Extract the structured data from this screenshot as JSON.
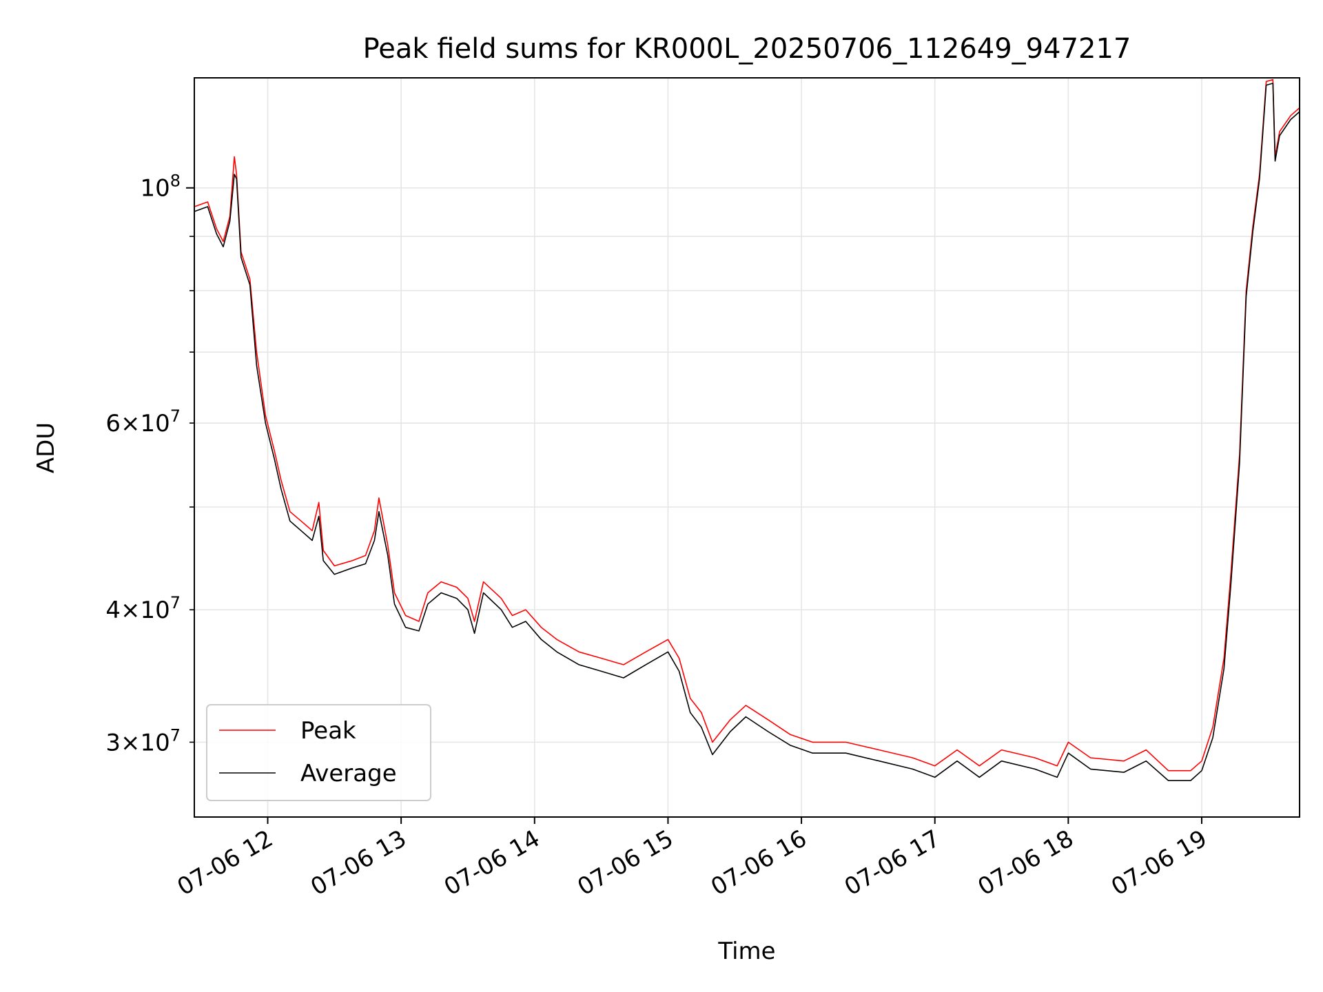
{
  "chart_data": {
    "type": "line",
    "title": "Peak field sums for KR000L_20250706_112649_947217",
    "xlabel": "Time",
    "ylabel": "ADU",
    "yscale": "log",
    "xlim": [
      "2025-07-06 11:27",
      "2025-07-06 19:44"
    ],
    "ylim": [
      25500000,
      127000000
    ],
    "x_ticks": [
      {
        "value": "2025-07-06 12:00",
        "label": "07-06 12"
      },
      {
        "value": "2025-07-06 13:00",
        "label": "07-06 13"
      },
      {
        "value": "2025-07-06 14:00",
        "label": "07-06 14"
      },
      {
        "value": "2025-07-06 15:00",
        "label": "07-06 15"
      },
      {
        "value": "2025-07-06 16:00",
        "label": "07-06 16"
      },
      {
        "value": "2025-07-06 17:00",
        "label": "07-06 17"
      },
      {
        "value": "2025-07-06 18:00",
        "label": "07-06 18"
      },
      {
        "value": "2025-07-06 19:00",
        "label": "07-06 19"
      }
    ],
    "y_ticks_major": [
      {
        "value": 100000000,
        "base": "10",
        "exp": "8",
        "mant": ""
      }
    ],
    "y_ticks_minor": [
      {
        "value": 30000000,
        "mant": "3",
        "base": "10",
        "exp": "7"
      },
      {
        "value": 40000000,
        "mant": "4",
        "base": "10",
        "exp": "7"
      },
      {
        "value": 50000000,
        "mant": "",
        "base": "",
        "exp": ""
      },
      {
        "value": 60000000,
        "mant": "6",
        "base": "10",
        "exp": "7"
      },
      {
        "value": 70000000,
        "mant": "",
        "base": "",
        "exp": ""
      },
      {
        "value": 80000000,
        "mant": "",
        "base": "",
        "exp": ""
      },
      {
        "value": 90000000,
        "mant": "",
        "base": "",
        "exp": ""
      }
    ],
    "grid": true,
    "legend": {
      "placement": "lower-left",
      "entries": [
        "Peak",
        "Average"
      ]
    },
    "series": [
      {
        "name": "Peak",
        "color": "#ff0000",
        "points": [
          [
            "2025-07-06 11:27",
            96000000
          ],
          [
            "2025-07-06 11:33",
            97000000
          ],
          [
            "2025-07-06 11:37",
            91500000
          ],
          [
            "2025-07-06 11:40",
            89000000
          ],
          [
            "2025-07-06 11:43",
            94000000
          ],
          [
            "2025-07-06 11:45",
            107000000
          ],
          [
            "2025-07-06 11:46",
            103000000
          ],
          [
            "2025-07-06 11:48",
            87000000
          ],
          [
            "2025-07-06 11:52",
            82000000
          ],
          [
            "2025-07-06 11:55",
            70000000
          ],
          [
            "2025-07-06 11:59",
            61000000
          ],
          [
            "2025-07-06 12:03",
            56500000
          ],
          [
            "2025-07-06 12:06",
            53000000
          ],
          [
            "2025-07-06 12:10",
            49500000
          ],
          [
            "2025-07-06 12:15",
            48500000
          ],
          [
            "2025-07-06 12:20",
            47500000
          ],
          [
            "2025-07-06 12:23",
            50500000
          ],
          [
            "2025-07-06 12:25",
            45500000
          ],
          [
            "2025-07-06 12:30",
            44000000
          ],
          [
            "2025-07-06 12:38",
            44500000
          ],
          [
            "2025-07-06 12:44",
            45000000
          ],
          [
            "2025-07-06 12:48",
            47500000
          ],
          [
            "2025-07-06 12:50",
            51000000
          ],
          [
            "2025-07-06 12:54",
            46000000
          ],
          [
            "2025-07-06 12:57",
            41500000
          ],
          [
            "2025-07-06 13:02",
            39500000
          ],
          [
            "2025-07-06 13:08",
            39000000
          ],
          [
            "2025-07-06 13:12",
            41500000
          ],
          [
            "2025-07-06 13:18",
            42500000
          ],
          [
            "2025-07-06 13:25",
            42000000
          ],
          [
            "2025-07-06 13:30",
            41000000
          ],
          [
            "2025-07-06 13:33",
            39000000
          ],
          [
            "2025-07-06 13:37",
            42500000
          ],
          [
            "2025-07-06 13:45",
            41000000
          ],
          [
            "2025-07-06 13:50",
            39500000
          ],
          [
            "2025-07-06 13:56",
            40000000
          ],
          [
            "2025-07-06 14:03",
            38500000
          ],
          [
            "2025-07-06 14:10",
            37500000
          ],
          [
            "2025-07-06 14:20",
            36500000
          ],
          [
            "2025-07-06 14:30",
            36000000
          ],
          [
            "2025-07-06 14:40",
            35500000
          ],
          [
            "2025-07-06 14:50",
            36500000
          ],
          [
            "2025-07-06 15:00",
            37500000
          ],
          [
            "2025-07-06 15:05",
            36000000
          ],
          [
            "2025-07-06 15:10",
            33000000
          ],
          [
            "2025-07-06 15:15",
            32000000
          ],
          [
            "2025-07-06 15:20",
            30000000
          ],
          [
            "2025-07-06 15:28",
            31500000
          ],
          [
            "2025-07-06 15:35",
            32500000
          ],
          [
            "2025-07-06 15:45",
            31500000
          ],
          [
            "2025-07-06 15:55",
            30500000
          ],
          [
            "2025-07-06 16:05",
            30000000
          ],
          [
            "2025-07-06 16:20",
            30000000
          ],
          [
            "2025-07-06 16:35",
            29500000
          ],
          [
            "2025-07-06 16:50",
            29000000
          ],
          [
            "2025-07-06 17:00",
            28500000
          ],
          [
            "2025-07-06 17:10",
            29500000
          ],
          [
            "2025-07-06 17:20",
            28500000
          ],
          [
            "2025-07-06 17:30",
            29500000
          ],
          [
            "2025-07-06 17:45",
            29000000
          ],
          [
            "2025-07-06 17:55",
            28500000
          ],
          [
            "2025-07-06 18:00",
            30000000
          ],
          [
            "2025-07-06 18:10",
            29000000
          ],
          [
            "2025-07-06 18:25",
            28800000
          ],
          [
            "2025-07-06 18:35",
            29500000
          ],
          [
            "2025-07-06 18:45",
            28200000
          ],
          [
            "2025-07-06 18:55",
            28200000
          ],
          [
            "2025-07-06 19:00",
            28800000
          ],
          [
            "2025-07-06 19:05",
            31000000
          ],
          [
            "2025-07-06 19:10",
            36000000
          ],
          [
            "2025-07-06 19:13",
            43000000
          ],
          [
            "2025-07-06 19:17",
            56000000
          ],
          [
            "2025-07-06 19:20",
            80000000
          ],
          [
            "2025-07-06 19:23",
            92000000
          ],
          [
            "2025-07-06 19:26",
            103000000
          ],
          [
            "2025-07-06 19:29",
            126000000
          ],
          [
            "2025-07-06 19:32",
            126500000
          ],
          [
            "2025-07-06 19:33",
            107000000
          ],
          [
            "2025-07-06 19:35",
            113000000
          ],
          [
            "2025-07-06 19:40",
            117000000
          ],
          [
            "2025-07-06 19:44",
            119000000
          ]
        ]
      },
      {
        "name": "Average",
        "color": "#000000",
        "points": [
          [
            "2025-07-06 11:27",
            95000000
          ],
          [
            "2025-07-06 11:33",
            96000000
          ],
          [
            "2025-07-06 11:37",
            90500000
          ],
          [
            "2025-07-06 11:40",
            88000000
          ],
          [
            "2025-07-06 11:43",
            93000000
          ],
          [
            "2025-07-06 11:45",
            103000000
          ],
          [
            "2025-07-06 11:46",
            102000000
          ],
          [
            "2025-07-06 11:48",
            86000000
          ],
          [
            "2025-07-06 11:52",
            81000000
          ],
          [
            "2025-07-06 11:55",
            68000000
          ],
          [
            "2025-07-06 11:59",
            60000000
          ],
          [
            "2025-07-06 12:03",
            55500000
          ],
          [
            "2025-07-06 12:06",
            52000000
          ],
          [
            "2025-07-06 12:10",
            48500000
          ],
          [
            "2025-07-06 12:15",
            47500000
          ],
          [
            "2025-07-06 12:20",
            46500000
          ],
          [
            "2025-07-06 12:23",
            49000000
          ],
          [
            "2025-07-06 12:25",
            44500000
          ],
          [
            "2025-07-06 12:30",
            43200000
          ],
          [
            "2025-07-06 12:38",
            43800000
          ],
          [
            "2025-07-06 12:44",
            44200000
          ],
          [
            "2025-07-06 12:48",
            46500000
          ],
          [
            "2025-07-06 12:50",
            49500000
          ],
          [
            "2025-07-06 12:54",
            45000000
          ],
          [
            "2025-07-06 12:57",
            40500000
          ],
          [
            "2025-07-06 13:02",
            38500000
          ],
          [
            "2025-07-06 13:08",
            38200000
          ],
          [
            "2025-07-06 13:12",
            40500000
          ],
          [
            "2025-07-06 13:18",
            41500000
          ],
          [
            "2025-07-06 13:25",
            41000000
          ],
          [
            "2025-07-06 13:30",
            40000000
          ],
          [
            "2025-07-06 13:33",
            38000000
          ],
          [
            "2025-07-06 13:37",
            41500000
          ],
          [
            "2025-07-06 13:45",
            40000000
          ],
          [
            "2025-07-06 13:50",
            38500000
          ],
          [
            "2025-07-06 13:56",
            39000000
          ],
          [
            "2025-07-06 14:03",
            37500000
          ],
          [
            "2025-07-06 14:10",
            36500000
          ],
          [
            "2025-07-06 14:20",
            35500000
          ],
          [
            "2025-07-06 14:30",
            35000000
          ],
          [
            "2025-07-06 14:40",
            34500000
          ],
          [
            "2025-07-06 14:50",
            35500000
          ],
          [
            "2025-07-06 15:00",
            36500000
          ],
          [
            "2025-07-06 15:05",
            35000000
          ],
          [
            "2025-07-06 15:10",
            32000000
          ],
          [
            "2025-07-06 15:15",
            31000000
          ],
          [
            "2025-07-06 15:20",
            29200000
          ],
          [
            "2025-07-06 15:28",
            30700000
          ],
          [
            "2025-07-06 15:35",
            31700000
          ],
          [
            "2025-07-06 15:45",
            30700000
          ],
          [
            "2025-07-06 15:55",
            29800000
          ],
          [
            "2025-07-06 16:05",
            29300000
          ],
          [
            "2025-07-06 16:20",
            29300000
          ],
          [
            "2025-07-06 16:35",
            28800000
          ],
          [
            "2025-07-06 16:50",
            28300000
          ],
          [
            "2025-07-06 17:00",
            27800000
          ],
          [
            "2025-07-06 17:10",
            28800000
          ],
          [
            "2025-07-06 17:20",
            27800000
          ],
          [
            "2025-07-06 17:30",
            28800000
          ],
          [
            "2025-07-06 17:45",
            28300000
          ],
          [
            "2025-07-06 17:55",
            27800000
          ],
          [
            "2025-07-06 18:00",
            29300000
          ],
          [
            "2025-07-06 18:10",
            28300000
          ],
          [
            "2025-07-06 18:25",
            28100000
          ],
          [
            "2025-07-06 18:35",
            28800000
          ],
          [
            "2025-07-06 18:45",
            27600000
          ],
          [
            "2025-07-06 18:55",
            27600000
          ],
          [
            "2025-07-06 19:00",
            28200000
          ],
          [
            "2025-07-06 19:05",
            30300000
          ],
          [
            "2025-07-06 19:10",
            35200000
          ],
          [
            "2025-07-06 19:13",
            42000000
          ],
          [
            "2025-07-06 19:17",
            55000000
          ],
          [
            "2025-07-06 19:20",
            79000000
          ],
          [
            "2025-07-06 19:23",
            91000000
          ],
          [
            "2025-07-06 19:26",
            102000000
          ],
          [
            "2025-07-06 19:29",
            125000000
          ],
          [
            "2025-07-06 19:32",
            125500000
          ],
          [
            "2025-07-06 19:33",
            106000000
          ],
          [
            "2025-07-06 19:35",
            112000000
          ],
          [
            "2025-07-06 19:40",
            116000000
          ],
          [
            "2025-07-06 19:44",
            118000000
          ]
        ]
      }
    ]
  }
}
